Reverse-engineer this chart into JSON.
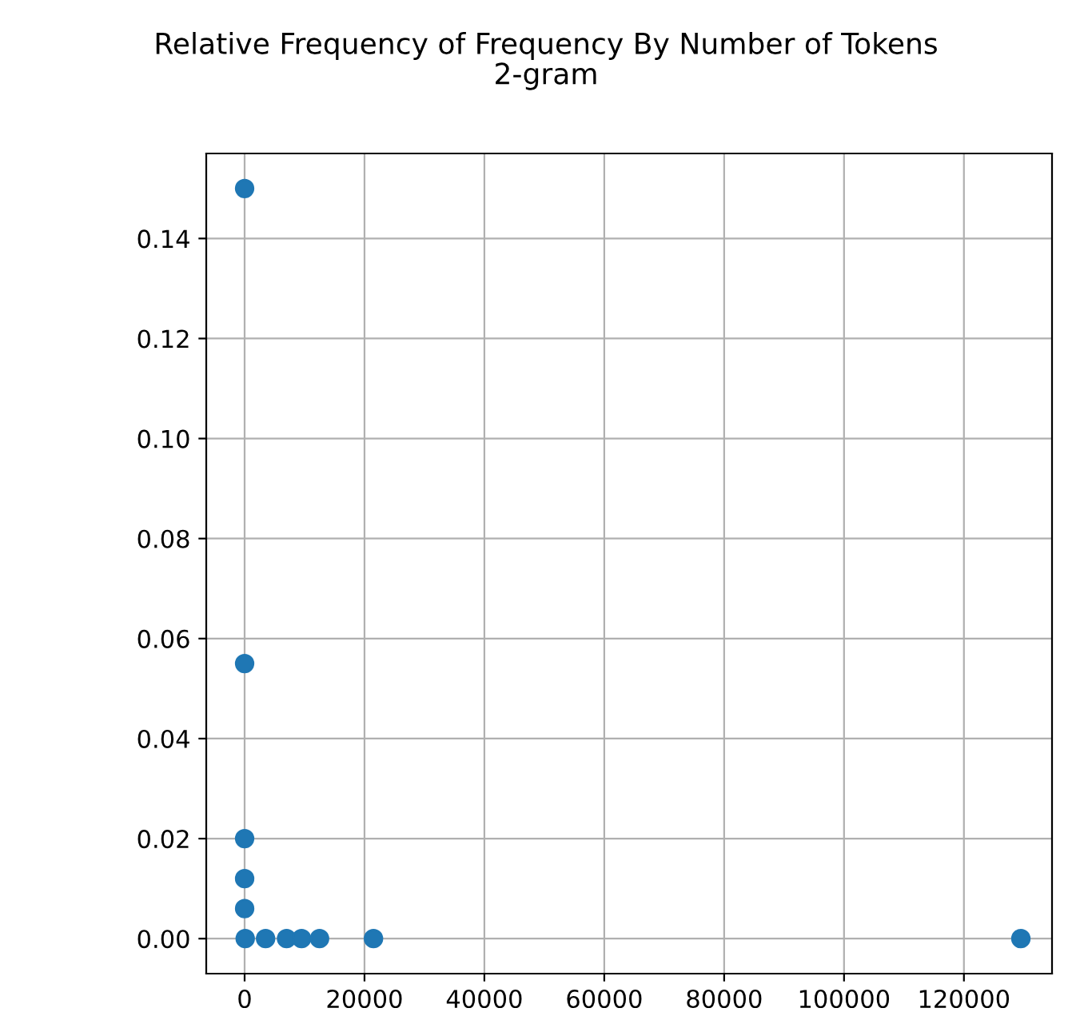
{
  "chart_data": {
    "type": "scatter",
    "title": "Relative Frequency of Frequency By Number of Tokens\n2-gram",
    "x": [
      1,
      2,
      3,
      4,
      5,
      100,
      3500,
      7000,
      9500,
      12500,
      21500,
      129500
    ],
    "values": [
      0.15,
      0.055,
      0.02,
      0.012,
      0.006,
      0,
      0,
      0,
      0,
      0,
      0,
      0
    ],
    "color": "#1f77b4",
    "marker": "circle",
    "xlim": [
      -6400,
      134700
    ],
    "xticks": [
      0,
      20000,
      40000,
      60000,
      80000,
      100000,
      120000
    ],
    "ylim": [
      -0.007,
      0.157
    ],
    "yticks": [
      {
        "value": 0,
        "label": "0.00"
      },
      {
        "value": 0.02,
        "label": "0.02"
      },
      {
        "value": 0.04,
        "label": "0.04"
      },
      {
        "value": 0.06,
        "label": "0.06"
      },
      {
        "value": 0.08,
        "label": "0.08"
      },
      {
        "value": 0.1,
        "label": "0.10"
      },
      {
        "value": 0.12,
        "label": "0.12"
      },
      {
        "value": 0.14,
        "label": "0.14"
      }
    ],
    "grid": true
  }
}
